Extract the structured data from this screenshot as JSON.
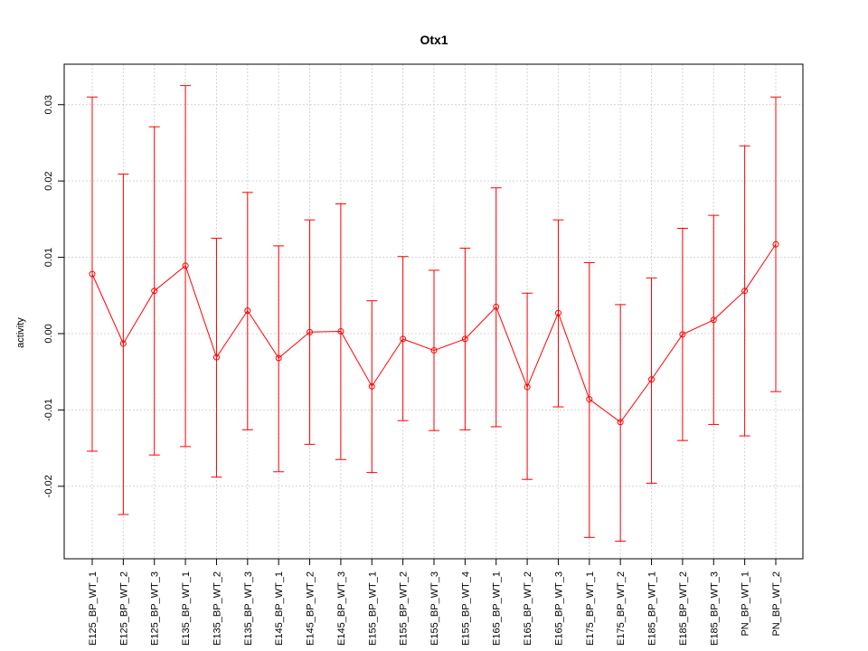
{
  "chart_data": {
    "type": "line",
    "title": "Otx1",
    "xlabel": "",
    "ylabel": "activity",
    "ylim": [
      -0.0295,
      0.0353
    ],
    "yticks": [
      -0.02,
      -0.01,
      0.0,
      0.01,
      0.02,
      0.03
    ],
    "ytick_labels": [
      "-0.02",
      "-0.01",
      "0.00",
      "0.01",
      "0.02",
      "0.03"
    ],
    "grid": true,
    "colors": {
      "series": "#ff0000",
      "grid": "#d3d3d3",
      "axis": "#000000"
    },
    "categories": [
      "E125_BP_WT_1",
      "E125_BP_WT_2",
      "E125_BP_WT_3",
      "E135_BP_WT_1",
      "E135_BP_WT_2",
      "E135_BP_WT_3",
      "E145_BP_WT_1",
      "E145_BP_WT_2",
      "E145_BP_WT_3",
      "E155_BP_WT_1",
      "E155_BP_WT_2",
      "E155_BP_WT_3",
      "E155_BP_WT_4",
      "E165_BP_WT_1",
      "E165_BP_WT_2",
      "E165_BP_WT_3",
      "E175_BP_WT_1",
      "E175_BP_WT_2",
      "E185_BP_WT_1",
      "E185_BP_WT_2",
      "E185_BP_WT_3",
      "PN_BP_WT_1",
      "PN_BP_WT_2"
    ],
    "series": [
      {
        "values": [
          0.0078,
          -0.0013,
          0.0056,
          0.0089,
          -0.0031,
          0.003,
          -0.0032,
          0.0002,
          0.0003,
          -0.0069,
          -0.0007,
          -0.0022,
          -0.0007,
          0.0035,
          -0.007,
          0.0027,
          -0.0086,
          -0.0116,
          -0.006,
          -0.0001,
          0.0018,
          0.0056,
          0.0117
        ],
        "upper": [
          0.031,
          0.0209,
          0.0271,
          0.0325,
          0.0125,
          0.0185,
          0.0115,
          0.0149,
          0.017,
          0.0043,
          0.0101,
          0.0083,
          0.0112,
          0.0191,
          0.0053,
          0.0149,
          0.0093,
          0.0038,
          0.0073,
          0.0138,
          0.0155,
          0.0246,
          0.031
        ],
        "lower": [
          -0.0154,
          -0.0237,
          -0.0159,
          -0.0148,
          -0.0188,
          -0.0126,
          -0.0181,
          -0.0145,
          -0.0165,
          -0.0182,
          -0.0114,
          -0.0127,
          -0.0126,
          -0.0122,
          -0.0191,
          -0.0096,
          -0.0267,
          -0.0272,
          -0.0196,
          -0.014,
          -0.0119,
          -0.0134,
          -0.0076
        ]
      }
    ]
  }
}
